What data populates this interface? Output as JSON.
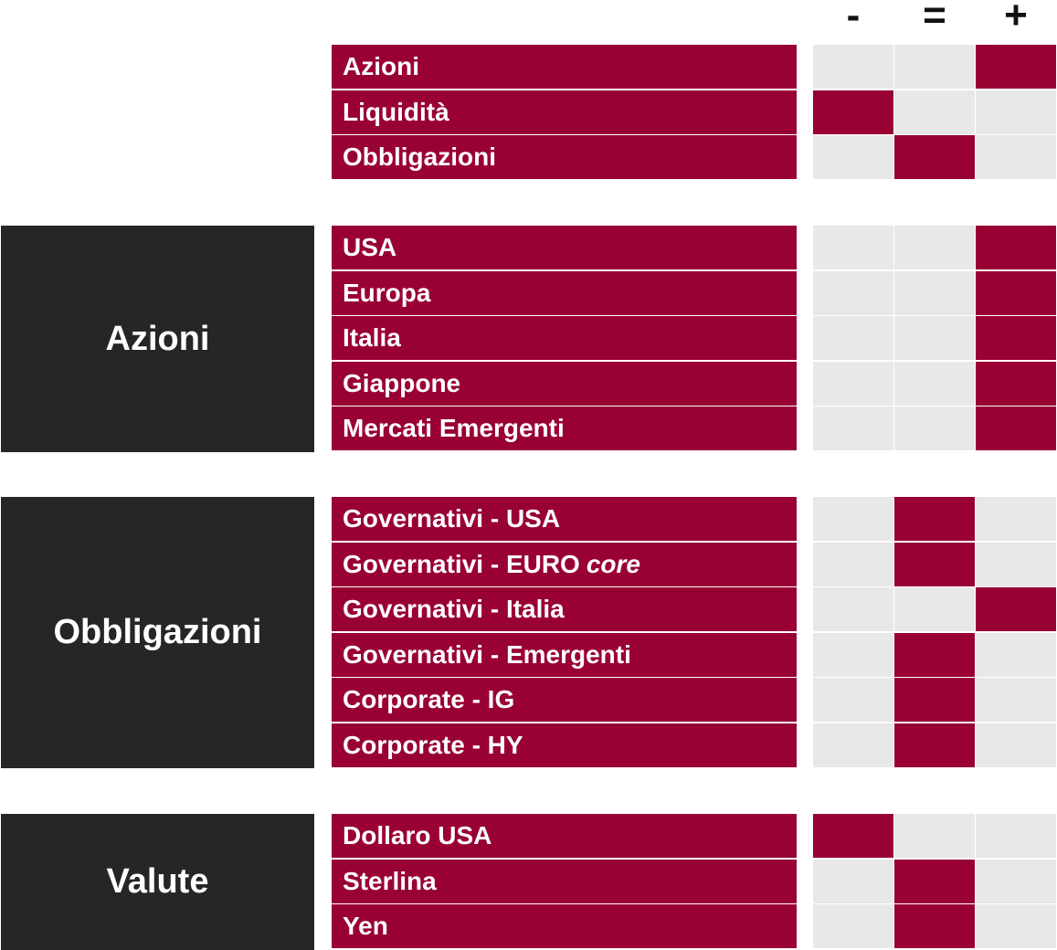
{
  "columns": [
    "-",
    "=",
    "+"
  ],
  "groups": [
    {
      "title": "",
      "rows": [
        {
          "label": "Azioni",
          "rating": 2
        },
        {
          "label": "Liquidità",
          "rating": 0
        },
        {
          "label": "Obbligazioni",
          "rating": 1
        }
      ]
    },
    {
      "title": "Azioni",
      "rows": [
        {
          "label": "USA",
          "rating": 2
        },
        {
          "label": "Europa",
          "rating": 2
        },
        {
          "label": "Italia",
          "rating": 2
        },
        {
          "label": "Giappone",
          "rating": 2
        },
        {
          "label": "Mercati Emergenti",
          "rating": 2
        }
      ]
    },
    {
      "title": "Obbligazioni",
      "rows": [
        {
          "label": "Governativi - USA",
          "rating": 1
        },
        {
          "label": "Governativi - EURO",
          "suffix_italic": "core",
          "rating": 1
        },
        {
          "label": "Governativi - Italia",
          "rating": 2
        },
        {
          "label": "Governativi - Emergenti",
          "rating": 1
        },
        {
          "label": "Corporate - IG",
          "rating": 1
        },
        {
          "label": "Corporate - HY",
          "rating": 1
        }
      ]
    },
    {
      "title": "Valute",
      "rows": [
        {
          "label": "Dollaro USA",
          "rating": 0
        },
        {
          "label": "Sterlina",
          "rating": 1
        },
        {
          "label": "Yen",
          "rating": 1
        }
      ]
    }
  ],
  "colors": {
    "accent": "#990033",
    "category_bg": "#262626",
    "cell_empty": "#e8e8e8"
  }
}
